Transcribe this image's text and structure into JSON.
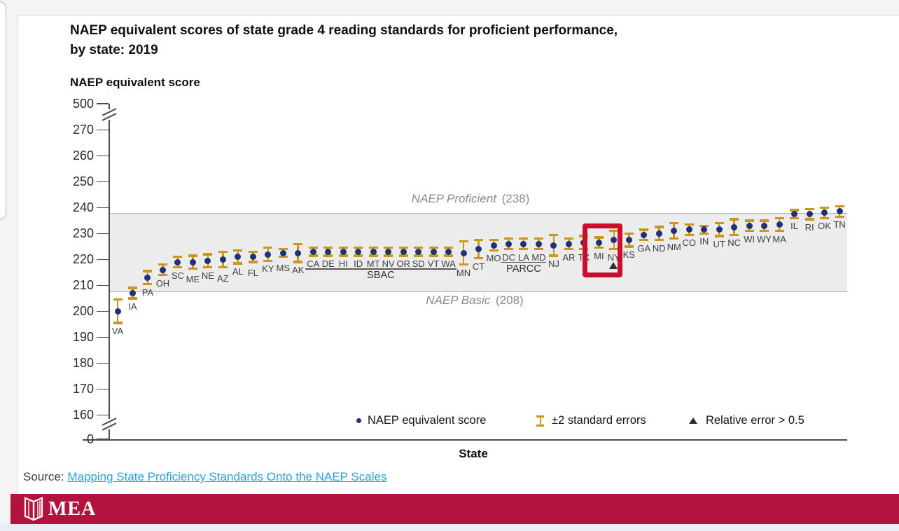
{
  "page": {
    "title_line1": "NAEP equivalent scores of state grade 4 reading standards for proficient performance,",
    "title_line2": "by state: 2019",
    "source_label": "Source:",
    "source_link": "Mapping State Proficiency Standards Onto the NAEP Scales",
    "footer_logo_text": "MEA"
  },
  "colors": {
    "dot": "#203176",
    "error_bar": "#cb9520",
    "highlight_box": "#c8102e",
    "band_fill": "#ececec",
    "footer_red": "#b3123f",
    "link_blue": "#2f9fe1"
  },
  "chart_data": {
    "type": "scatter",
    "title": "NAEP equivalent scores of state grade 4 reading standards for proficient performance, by state: 2019",
    "ylabel": "NAEP equivalent score",
    "xlabel": "State",
    "y_ticks": [
      500,
      270,
      260,
      250,
      240,
      230,
      220,
      210,
      200,
      190,
      180,
      170,
      160,
      0
    ],
    "y_axis_breaks": [
      [
        270,
        500
      ],
      [
        0,
        160
      ]
    ],
    "reference_band": {
      "top_label": "NAEP Proficient",
      "top_value": 238,
      "bottom_label": "NAEP Basic",
      "bottom_value": 208
    },
    "legend": [
      {
        "marker": "dot",
        "label": "NAEP equivalent score"
      },
      {
        "marker": "error-bar",
        "label": "±2 standard errors"
      },
      {
        "marker": "triangle",
        "label": "Relative error > 0.5"
      }
    ],
    "groups": [
      {
        "name": "SBAC",
        "from": "CA",
        "to": "WA"
      },
      {
        "name": "PARCC",
        "from": "DC",
        "to": "MD"
      }
    ],
    "highlight": {
      "state": "MI"
    },
    "states": [
      {
        "abbr": "VA",
        "value": 200,
        "se2": 4.5
      },
      {
        "abbr": "IA",
        "value": 207,
        "se2": 2
      },
      {
        "abbr": "PA",
        "value": 213,
        "se2": 2.5
      },
      {
        "abbr": "OH",
        "value": 216,
        "se2": 2
      },
      {
        "abbr": "SC",
        "value": 219,
        "se2": 2
      },
      {
        "abbr": "ME",
        "value": 219,
        "se2": 2.5
      },
      {
        "abbr": "NE",
        "value": 219.5,
        "se2": 2.5
      },
      {
        "abbr": "AZ",
        "value": 220,
        "se2": 3
      },
      {
        "abbr": "AL",
        "value": 221,
        "se2": 2.5
      },
      {
        "abbr": "FL",
        "value": 221,
        "se2": 2
      },
      {
        "abbr": "KY",
        "value": 222,
        "se2": 2.5
      },
      {
        "abbr": "MS",
        "value": 222.5,
        "se2": 1.5
      },
      {
        "abbr": "AK",
        "value": 222.5,
        "se2": 3.5
      },
      {
        "abbr": "CA",
        "value": 223,
        "se2": 1.5
      },
      {
        "abbr": "DE",
        "value": 223,
        "se2": 1.5
      },
      {
        "abbr": "HI",
        "value": 223,
        "se2": 1.5
      },
      {
        "abbr": "ID",
        "value": 223,
        "se2": 1.5
      },
      {
        "abbr": "MT",
        "value": 223,
        "se2": 1.5
      },
      {
        "abbr": "NV",
        "value": 223,
        "se2": 1.5
      },
      {
        "abbr": "OR",
        "value": 223,
        "se2": 1.5
      },
      {
        "abbr": "SD",
        "value": 223,
        "se2": 1.5
      },
      {
        "abbr": "VT",
        "value": 223,
        "se2": 1.5
      },
      {
        "abbr": "WA",
        "value": 223,
        "se2": 1.5
      },
      {
        "abbr": "MN",
        "value": 222.5,
        "se2": 4.5
      },
      {
        "abbr": "CT",
        "value": 224,
        "se2": 3.5
      },
      {
        "abbr": "MO",
        "value": 225.5,
        "se2": 2
      },
      {
        "abbr": "DC",
        "value": 226,
        "se2": 2
      },
      {
        "abbr": "LA",
        "value": 226,
        "se2": 2
      },
      {
        "abbr": "MD",
        "value": 226,
        "se2": 2
      },
      {
        "abbr": "NJ",
        "value": 225.5,
        "se2": 4
      },
      {
        "abbr": "AR",
        "value": 226,
        "se2": 2
      },
      {
        "abbr": "TX",
        "value": 226.5,
        "se2": 2.5
      },
      {
        "abbr": "MI",
        "value": 226.5,
        "se2": 2
      },
      {
        "abbr": "NY",
        "value": 227.5,
        "se2": 3.5,
        "relative_error_flag": true
      },
      {
        "abbr": "KS",
        "value": 227.5,
        "se2": 2.5
      },
      {
        "abbr": "GA",
        "value": 229.5,
        "se2": 2
      },
      {
        "abbr": "ND",
        "value": 230,
        "se2": 2.5
      },
      {
        "abbr": "NM",
        "value": 231,
        "se2": 3
      },
      {
        "abbr": "CO",
        "value": 231.5,
        "se2": 2
      },
      {
        "abbr": "IN",
        "value": 231.5,
        "se2": 1.5
      },
      {
        "abbr": "UT",
        "value": 231.5,
        "se2": 2.5
      },
      {
        "abbr": "NC",
        "value": 232.5,
        "se2": 3
      },
      {
        "abbr": "WI",
        "value": 233,
        "se2": 2
      },
      {
        "abbr": "WY",
        "value": 233,
        "se2": 2
      },
      {
        "abbr": "MA",
        "value": 233.5,
        "se2": 2.5
      },
      {
        "abbr": "IL",
        "value": 237.5,
        "se2": 1.5
      },
      {
        "abbr": "RI",
        "value": 237.5,
        "se2": 2
      },
      {
        "abbr": "OK",
        "value": 238,
        "se2": 2
      },
      {
        "abbr": "TN",
        "value": 238.5,
        "se2": 2
      }
    ]
  }
}
